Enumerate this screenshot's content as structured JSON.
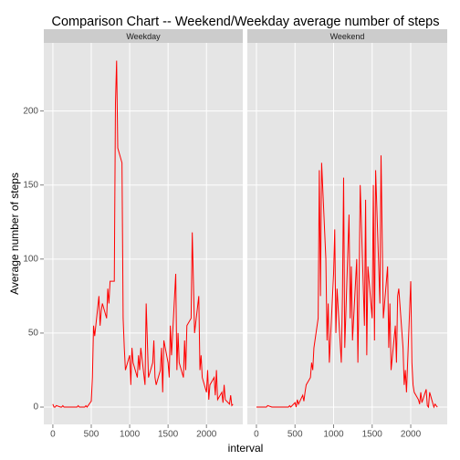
{
  "chart_data": {
    "type": "line",
    "title": "Comparison Chart -- Weekend/Weekday average number of steps",
    "x_label": "interval",
    "y_label": "Average number of steps",
    "facet": true,
    "grid": true,
    "xlim": [
      -117.75,
      2472.75
    ],
    "xticks": [
      0,
      500,
      1000,
      1500,
      2000
    ],
    "ylim": [
      -11.7,
      246
    ],
    "yticks": [
      0,
      50,
      100,
      150,
      200
    ],
    "x": [
      0,
      15,
      30,
      45,
      100,
      115,
      130,
      145,
      200,
      215,
      230,
      245,
      300,
      315,
      330,
      345,
      400,
      415,
      430,
      445,
      500,
      515,
      530,
      545,
      600,
      615,
      630,
      645,
      700,
      715,
      730,
      745,
      800,
      815,
      830,
      845,
      900,
      915,
      930,
      945,
      1000,
      1015,
      1030,
      1045,
      1100,
      1115,
      1130,
      1145,
      1200,
      1215,
      1230,
      1245,
      1300,
      1315,
      1330,
      1345,
      1400,
      1415,
      1430,
      1445,
      1500,
      1515,
      1530,
      1545,
      1600,
      1615,
      1630,
      1645,
      1700,
      1715,
      1730,
      1745,
      1800,
      1815,
      1830,
      1845,
      1900,
      1915,
      1930,
      1945,
      2000,
      2015,
      2030,
      2045,
      2100,
      2115,
      2130,
      2145,
      2200,
      2215,
      2230,
      2245,
      2300,
      2315,
      2330,
      2345
    ],
    "series": [
      {
        "name": "Weekday",
        "color": "#ff0000",
        "values": [
          2,
          0,
          0,
          1,
          0,
          0,
          1,
          0,
          0,
          0,
          0,
          0,
          0,
          0,
          1,
          0,
          0,
          0,
          1,
          0,
          4,
          20,
          55,
          48,
          75,
          55,
          65,
          70,
          60,
          80,
          70,
          85,
          85,
          205,
          234,
          175,
          165,
          60,
          40,
          25,
          35,
          15,
          40,
          30,
          20,
          35,
          25,
          40,
          15,
          70,
          45,
          20,
          30,
          45,
          20,
          15,
          25,
          40,
          10,
          45,
          30,
          20,
          55,
          35,
          90,
          25,
          50,
          30,
          20,
          45,
          25,
          55,
          60,
          118,
          85,
          50,
          75,
          25,
          35,
          20,
          10,
          25,
          5,
          15,
          20,
          8,
          25,
          5,
          10,
          3,
          15,
          5,
          2,
          8,
          1,
          2
        ]
      },
      {
        "name": "Weekend",
        "color": "#ff0000",
        "values": [
          0,
          0,
          0,
          0,
          0,
          0,
          0,
          1,
          0,
          0,
          0,
          0,
          0,
          0,
          0,
          0,
          0,
          0,
          1,
          0,
          3,
          0,
          5,
          2,
          8,
          4,
          10,
          15,
          20,
          30,
          25,
          40,
          60,
          160,
          75,
          165,
          100,
          45,
          70,
          30,
          90,
          120,
          50,
          80,
          30,
          75,
          155,
          40,
          130,
          60,
          95,
          45,
          100,
          30,
          80,
          150,
          55,
          140,
          35,
          95,
          60,
          150,
          45,
          160,
          70,
          170,
          115,
          60,
          95,
          40,
          70,
          25,
          55,
          30,
          75,
          80,
          40,
          15,
          25,
          10,
          85,
          30,
          15,
          10,
          5,
          2,
          10,
          3,
          12,
          1,
          0,
          10,
          0,
          2,
          1,
          0
        ]
      }
    ]
  }
}
